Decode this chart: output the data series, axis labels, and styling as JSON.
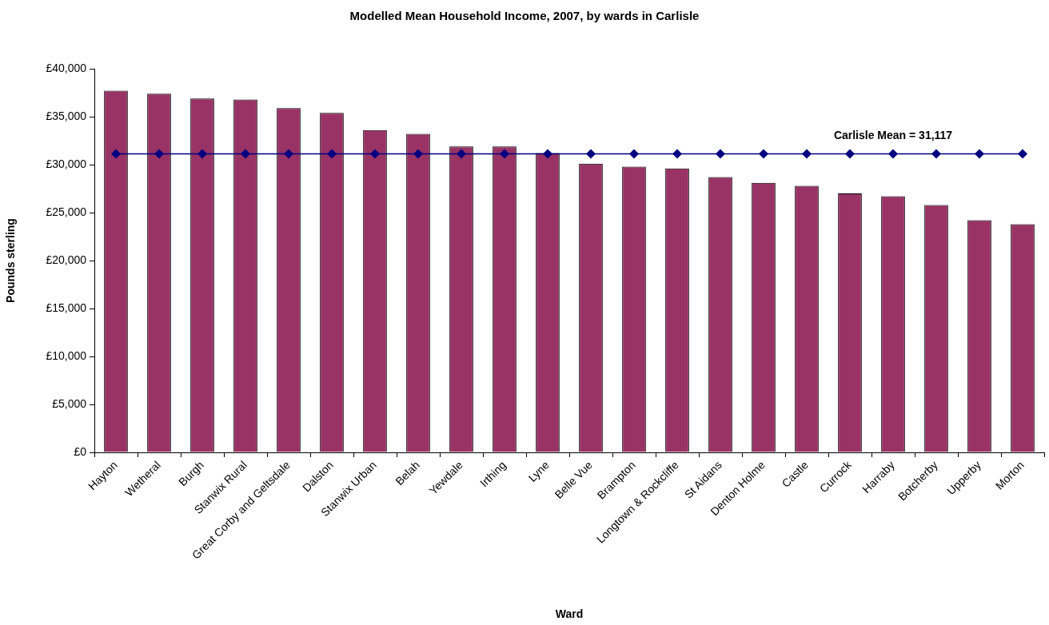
{
  "chart_data": {
    "type": "bar",
    "title": "Modelled Mean Household Income, 2007, by wards in Carlisle",
    "xlabel": "Ward",
    "ylabel": "Pounds sterling",
    "categories": [
      "Hayton",
      "Wetheral",
      "Burgh",
      "Stanwix Rural",
      "Great Corby and Geltsdale",
      "Dalston",
      "Stanwix Urban",
      "Belah",
      "Yewdale",
      "Irthing",
      "Lyne",
      "Belle Vue",
      "Brampton",
      "Longtown & Rockcliffe",
      "St Aidans",
      "Denton Holme",
      "Castle",
      "Currock",
      "Harraby",
      "Botcherby",
      "Upperby",
      "Morton"
    ],
    "series": [
      {
        "color": "#993366",
        "values": [
          37700,
          37400,
          36900,
          36800,
          35900,
          35400,
          33600,
          33200,
          31900,
          31900,
          31200,
          30100,
          29800,
          29600,
          28700,
          28100,
          27800,
          27000,
          26700,
          25800,
          24200,
          23800
        ]
      },
      {
        "type": "line",
        "name": "Carlisle Mean = 31,117",
        "color": "#000080",
        "values": [
          31117,
          31117,
          31117,
          31117,
          31117,
          31117,
          31117,
          31117,
          31117,
          31117,
          31117,
          31117,
          31117,
          31117,
          31117,
          31117,
          31117,
          31117,
          31117,
          31117,
          31117,
          31117
        ]
      }
    ],
    "ylim": [
      0,
      40000
    ],
    "yticks": [
      {
        "value": 0,
        "label": "£0"
      },
      {
        "value": 5000,
        "label": "£5,000"
      },
      {
        "value": 10000,
        "label": "£10,000"
      },
      {
        "value": 15000,
        "label": "£15,000"
      },
      {
        "value": 20000,
        "label": "£20,000"
      },
      {
        "value": 25000,
        "label": "£25,000"
      },
      {
        "value": 30000,
        "label": "£30,000"
      },
      {
        "value": 35000,
        "label": "£35,000"
      },
      {
        "value": 40000,
        "label": "£40,000"
      }
    ],
    "marker": "diamond"
  }
}
